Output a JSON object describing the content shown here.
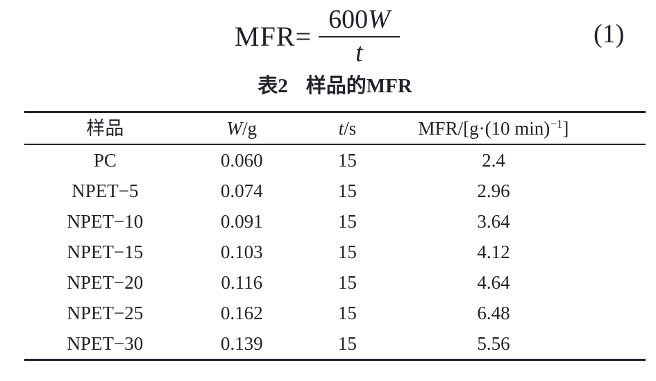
{
  "colors": {
    "text": "#20222c",
    "rule": "#23232e",
    "background": "#ffffff"
  },
  "equation": {
    "lhs": "MFR=",
    "numerator_coefficient": "600",
    "numerator_variable": "W",
    "denominator_variable": "t",
    "number": "(1)"
  },
  "table": {
    "caption": {
      "label": "表2",
      "title": "样品的MFR"
    },
    "headers": {
      "sample": "样品",
      "weight_variable": "W",
      "weight_unit": "/g",
      "time_variable": "t",
      "time_unit": "/s",
      "mfr_prefix": "MFR/[g·(10 min)",
      "mfr_superscript": "−1",
      "mfr_suffix": "]"
    },
    "rows": [
      {
        "sample": "PC",
        "w": "0.060",
        "t": "15",
        "mfr": "2.4"
      },
      {
        "sample": "NPET−5",
        "w": "0.074",
        "t": "15",
        "mfr": "2.96"
      },
      {
        "sample": "NPET−10",
        "w": "0.091",
        "t": "15",
        "mfr": "3.64"
      },
      {
        "sample": "NPET−15",
        "w": "0.103",
        "t": "15",
        "mfr": "4.12"
      },
      {
        "sample": "NPET−20",
        "w": "0.116",
        "t": "15",
        "mfr": "4.64"
      },
      {
        "sample": "NPET−25",
        "w": "0.162",
        "t": "15",
        "mfr": "6.48"
      },
      {
        "sample": "NPET−30",
        "w": "0.139",
        "t": "15",
        "mfr": "5.56"
      }
    ]
  }
}
